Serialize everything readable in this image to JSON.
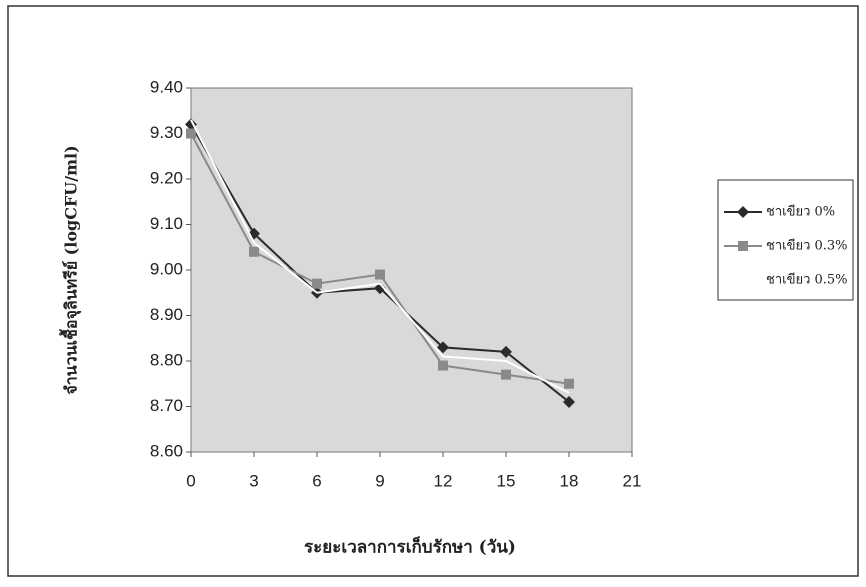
{
  "chart_data": {
    "type": "line",
    "y_label": "จำนวนเชื้อจุลินทรีย์ (logCFU/ml)",
    "x_label": "ระยะเวลาการเก็บรักษา (วัน)",
    "x": [
      0,
      3,
      6,
      9,
      12,
      15,
      18
    ],
    "series": [
      {
        "name": "ชาเขียว 0%",
        "color": "#2b2b2b",
        "marker": "diamond",
        "values": [
          9.32,
          9.08,
          8.95,
          8.96,
          8.83,
          8.82,
          8.71
        ]
      },
      {
        "name": "ชาเขียว 0.3%",
        "color": "#8a8a8a",
        "marker": "square",
        "values": [
          9.3,
          9.04,
          8.97,
          8.99,
          8.79,
          8.77,
          8.75
        ]
      },
      {
        "name": "ชาเขียว 0.5%",
        "color": "#ffffff",
        "marker": "none",
        "values": [
          9.33,
          9.06,
          8.95,
          8.97,
          8.81,
          8.8,
          8.73
        ]
      }
    ],
    "xlim": [
      0,
      21
    ],
    "xticks": [
      0,
      3,
      6,
      9,
      12,
      15,
      18,
      21
    ],
    "ylim": [
      8.6,
      9.4
    ],
    "yticks": [
      {
        "value": 8.6,
        "label": "8.60"
      },
      {
        "value": 8.7,
        "label": "8.70"
      },
      {
        "value": 8.8,
        "label": "8.80"
      },
      {
        "value": 8.9,
        "label": "8.90"
      },
      {
        "value": 9.0,
        "label": "9.00"
      },
      {
        "value": 9.1,
        "label": "9.10"
      },
      {
        "value": 9.2,
        "label": "9.20"
      },
      {
        "value": 9.3,
        "label": "9.30"
      },
      {
        "value": 9.4,
        "label": "9.40"
      }
    ],
    "legend": "right"
  }
}
